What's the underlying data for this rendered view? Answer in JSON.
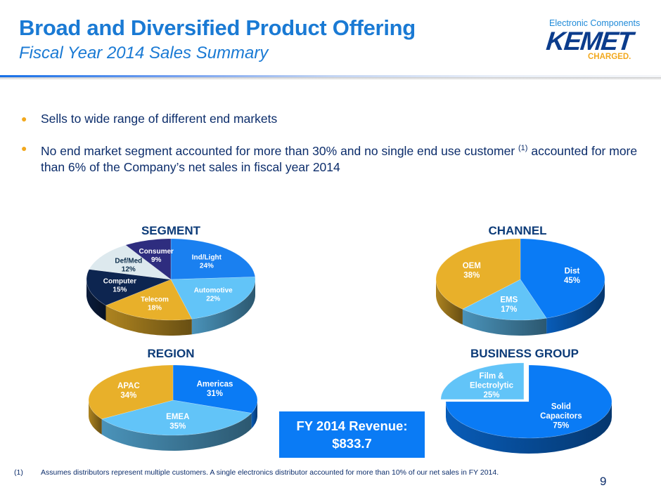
{
  "header": {
    "title": "Broad and Diversified Product Offering",
    "subtitle": "Fiscal Year 2014 Sales Summary"
  },
  "logo": {
    "tagline": "Electronic Components",
    "brand": "KEMET",
    "slogan": "CHARGED.",
    "colors": {
      "tagline": "#1f8ad8",
      "brand": "#0b3c8c",
      "slogan": "#f2a81d"
    }
  },
  "bullets": [
    {
      "text": "Sells to wide range of different end markets"
    },
    {
      "text_before": "No end market segment accounted for more than 30% and no single end use customer ",
      "sup": "(1)",
      "text_after": " accounted for more than 6% of the Company’s net sales in fiscal year 2014"
    }
  ],
  "revenue_box": {
    "line1": "FY 2014 Revenue:",
    "line2": "$833.7",
    "color": "#0a7bf5"
  },
  "footnote": {
    "marker": "(1)",
    "text": "Assumes distributors represent multiple customers. A single electronics distributor accounted for more than 10% of our net sales in FY 2014."
  },
  "page_number": "9",
  "chart_data": [
    {
      "type": "pie",
      "title": "SEGMENT",
      "style": "3d",
      "categories": [
        "Ind/Light",
        "Automotive",
        "Telecom",
        "Computer",
        "Def/Med",
        "Consumer"
      ],
      "values": [
        24,
        22,
        18,
        15,
        12,
        9
      ],
      "labels": [
        "24%",
        "22%",
        "18%",
        "15%",
        "12%",
        "9%"
      ],
      "colors": [
        "#1a80f0",
        "#62c4f8",
        "#e8b02a",
        "#0d2550",
        "#dde9ee",
        "#2e2d7f"
      ],
      "label_colors": [
        "#ffffff",
        "#ffffff",
        "#ffffff",
        "#ffffff",
        "#0c2d4b",
        "#ffffff"
      ],
      "start": "top",
      "direction": "clockwise"
    },
    {
      "type": "pie",
      "title": "CHANNEL",
      "style": "3d",
      "categories": [
        "Dist",
        "EMS",
        "OEM"
      ],
      "values": [
        45,
        17,
        38
      ],
      "labels": [
        "45%",
        "17%",
        "38%"
      ],
      "colors": [
        "#0a7bf5",
        "#62c4f8",
        "#e8b02a"
      ],
      "label_colors": [
        "#ffffff",
        "#ffffff",
        "#ffffff"
      ],
      "start": "top",
      "direction": "clockwise"
    },
    {
      "type": "pie",
      "title": "REGION",
      "style": "3d",
      "categories": [
        "Americas",
        "EMEA",
        "APAC"
      ],
      "values": [
        31,
        35,
        34
      ],
      "labels": [
        "31%",
        "35%",
        "34%"
      ],
      "colors": [
        "#0a7bf5",
        "#62c4f8",
        "#e8b02a"
      ],
      "label_colors": [
        "#ffffff",
        "#ffffff",
        "#ffffff"
      ],
      "start": "top",
      "direction": "clockwise"
    },
    {
      "type": "pie",
      "title": "BUSINESS GROUP",
      "style": "3d",
      "categories": [
        "Solid Capacitors",
        "Film & Electrolytic"
      ],
      "values": [
        75,
        25
      ],
      "labels": [
        "75%",
        "25%"
      ],
      "colors": [
        "#0a7bf5",
        "#62c4f8"
      ],
      "label_colors": [
        "#ffffff",
        "#ffffff"
      ],
      "exploded": [
        "Film & Electrolytic"
      ],
      "start": "top",
      "direction": "clockwise"
    }
  ]
}
